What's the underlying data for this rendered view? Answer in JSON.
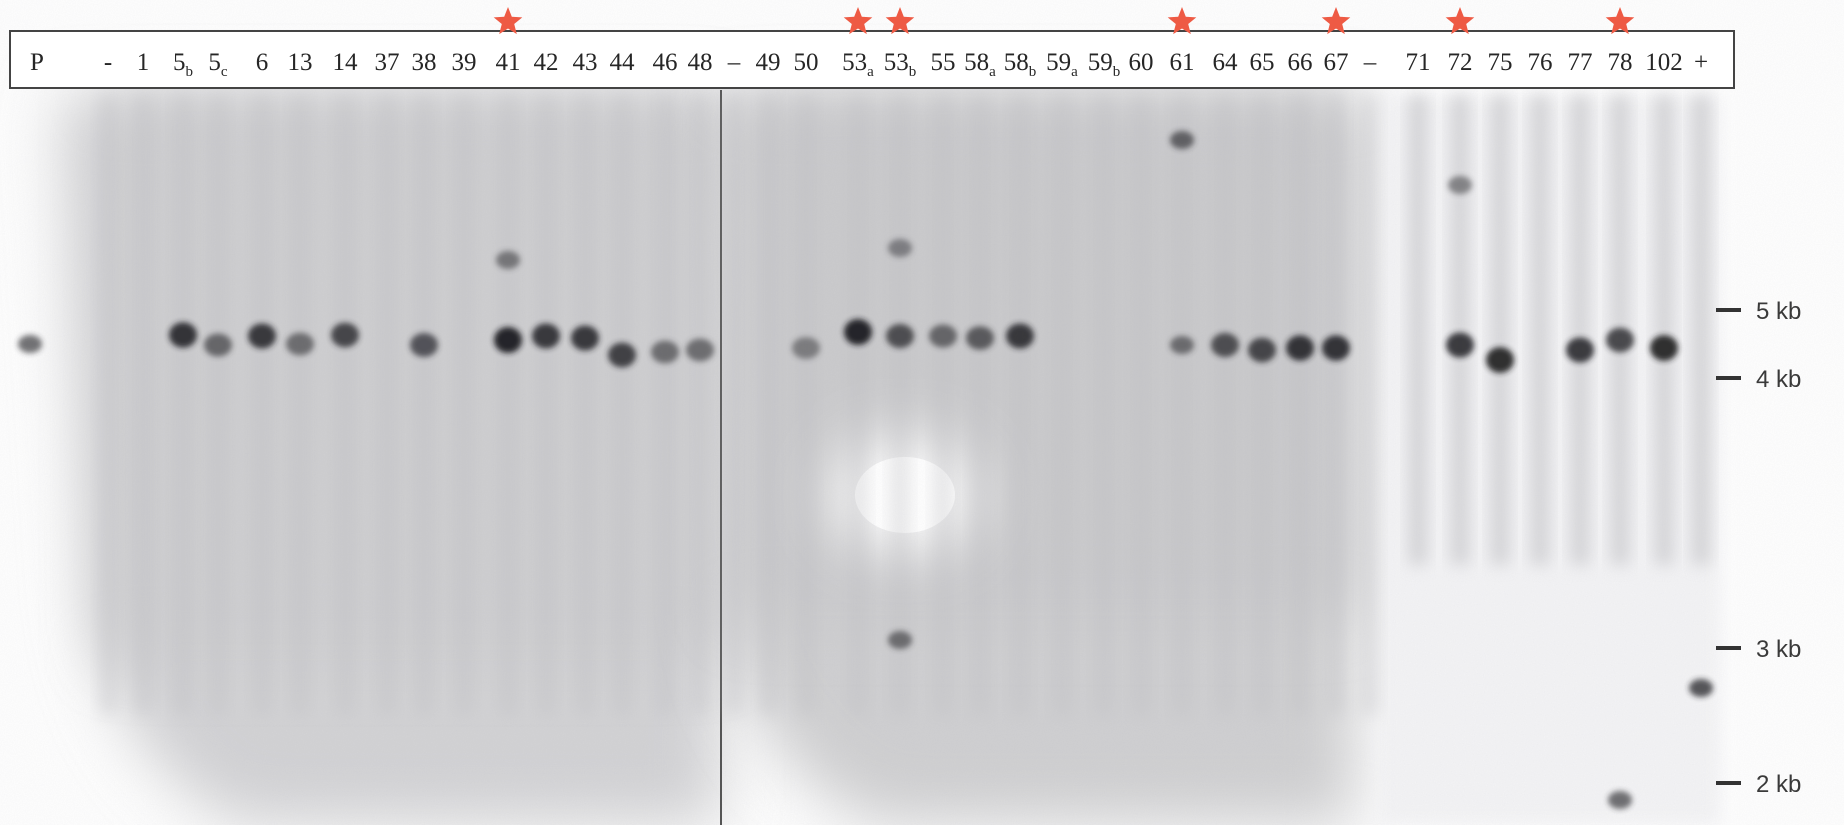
{
  "header": {
    "first_label": "P",
    "lanes": [
      {
        "label": "-"
      },
      {
        "label": "1"
      },
      {
        "label": "5",
        "sub": "b"
      },
      {
        "label": "5",
        "sub": "c"
      },
      {
        "label": "6"
      },
      {
        "label": "13"
      },
      {
        "label": "14"
      },
      {
        "label": "37"
      },
      {
        "label": "38"
      },
      {
        "label": "39"
      },
      {
        "label": "41",
        "starred": true
      },
      {
        "label": "42"
      },
      {
        "label": "43"
      },
      {
        "label": "44"
      },
      {
        "label": "46"
      },
      {
        "label": "48"
      },
      {
        "label": "–"
      },
      {
        "label": "49"
      },
      {
        "label": "50"
      },
      {
        "label": "53",
        "sub": "a",
        "starred": true
      },
      {
        "label": "53",
        "sub": "b",
        "starred": true
      },
      {
        "label": "55"
      },
      {
        "label": "58",
        "sub": "a"
      },
      {
        "label": "58",
        "sub": "b"
      },
      {
        "label": "59",
        "sub": "a"
      },
      {
        "label": "59",
        "sub": "b"
      },
      {
        "label": "60"
      },
      {
        "label": "61",
        "starred": true
      },
      {
        "label": "64"
      },
      {
        "label": "65"
      },
      {
        "label": "66"
      },
      {
        "label": "67",
        "starred": true
      },
      {
        "label": "–"
      },
      {
        "label": "71"
      },
      {
        "label": "72",
        "starred": true
      },
      {
        "label": "75"
      },
      {
        "label": "76"
      },
      {
        "label": "77"
      },
      {
        "label": "78",
        "starred": true
      },
      {
        "label": "102"
      },
      {
        "label": "+"
      }
    ]
  },
  "markers": [
    {
      "label": "5 kb"
    },
    {
      "label": "4 kb"
    },
    {
      "label": "3 kb"
    },
    {
      "label": "2 kb"
    }
  ],
  "colors": {
    "star": "#ee5a44",
    "band": "#2b2b2b",
    "background": "#d6d6d6"
  }
}
